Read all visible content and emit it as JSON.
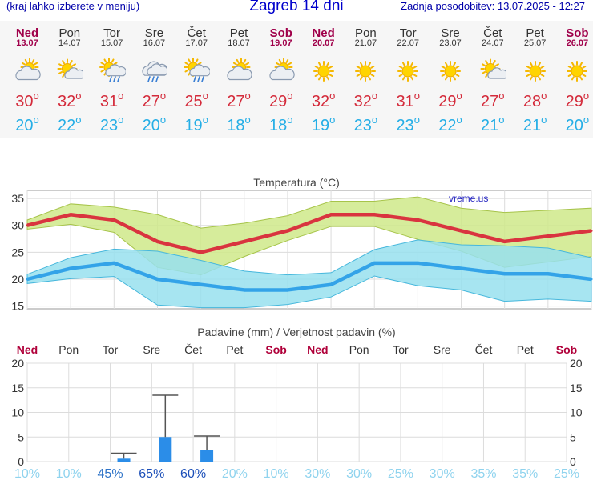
{
  "header": {
    "hint": "(kraj lahko izberete v meniju)",
    "title": "Zagreb 14 dni",
    "updated": "Zadnja posodobitev: 13.07.2025 - 12:27"
  },
  "days": [
    {
      "name": "Ned",
      "date": "13.07",
      "weekend": true,
      "icon": "partly-cloudy-icon",
      "max": "30",
      "min": "20"
    },
    {
      "name": "Pon",
      "date": "14.07",
      "weekend": false,
      "icon": "sun-cloud-icon",
      "max": "32",
      "min": "22"
    },
    {
      "name": "Tor",
      "date": "15.07",
      "weekend": false,
      "icon": "sun-cloud-rain-icon",
      "max": "31",
      "min": "23"
    },
    {
      "name": "Sre",
      "date": "16.07",
      "weekend": false,
      "icon": "cloud-rain-icon",
      "max": "27",
      "min": "20"
    },
    {
      "name": "Čet",
      "date": "17.07",
      "weekend": false,
      "icon": "sun-cloud-rain-icon",
      "max": "25",
      "min": "19"
    },
    {
      "name": "Pet",
      "date": "18.07",
      "weekend": false,
      "icon": "partly-cloudy-icon",
      "max": "27",
      "min": "18"
    },
    {
      "name": "Sob",
      "date": "19.07",
      "weekend": true,
      "icon": "partly-cloudy-icon",
      "max": "29",
      "min": "18"
    },
    {
      "name": "Ned",
      "date": "20.07",
      "weekend": true,
      "icon": "sun-icon",
      "max": "32",
      "min": "19"
    },
    {
      "name": "Pon",
      "date": "21.07",
      "weekend": false,
      "icon": "sun-icon",
      "max": "32",
      "min": "23"
    },
    {
      "name": "Tor",
      "date": "22.07",
      "weekend": false,
      "icon": "sun-icon",
      "max": "31",
      "min": "23"
    },
    {
      "name": "Sre",
      "date": "23.07",
      "weekend": false,
      "icon": "sun-icon",
      "max": "29",
      "min": "22"
    },
    {
      "name": "Čet",
      "date": "24.07",
      "weekend": false,
      "icon": "sun-cloud-icon",
      "max": "27",
      "min": "21"
    },
    {
      "name": "Pet",
      "date": "25.07",
      "weekend": false,
      "icon": "sun-icon",
      "max": "28",
      "min": "21"
    },
    {
      "name": "Sob",
      "date": "26.07",
      "weekend": true,
      "icon": "sun-icon",
      "max": "29",
      "min": "20"
    }
  ],
  "chart_data": [
    {
      "type": "line",
      "title": "Temperatura (°C)",
      "watermark": "vreme.us",
      "ylim": [
        14.5,
        36.5
      ],
      "yticks": [
        15,
        20,
        25,
        30,
        35
      ],
      "grid": true,
      "x": [
        0,
        1,
        2,
        3,
        4,
        5,
        6,
        7,
        8,
        9,
        10,
        11,
        12,
        13
      ],
      "series": [
        {
          "values": [
            30,
            32,
            31,
            27,
            25,
            27,
            29,
            32,
            32,
            31,
            29,
            27,
            28,
            29
          ],
          "color": "#d9343f"
        },
        {
          "values": [
            20,
            22,
            23,
            20,
            19,
            18,
            18,
            19,
            23,
            23,
            22,
            21,
            21,
            20
          ],
          "color": "#33a3e8"
        }
      ],
      "bands": [
        {
          "color": "#cfe98a",
          "edge": "#a7c44a",
          "upper": [
            31,
            34,
            33.4,
            32,
            29.5,
            30.4,
            31.8,
            34.5,
            34.5,
            35.3,
            33.2,
            32.4,
            32.8,
            33.2
          ],
          "lower": [
            29.3,
            30.2,
            28.7,
            22.2,
            20.8,
            24.2,
            27.2,
            29.8,
            29.8,
            27.4,
            25.2,
            22.2,
            23.2,
            24.2
          ]
        },
        {
          "color": "#98e0ee",
          "edge": "#46b7dc",
          "upper": [
            20.9,
            24,
            25.6,
            25.2,
            23.5,
            21.5,
            20.8,
            21.2,
            25.5,
            27.3,
            26.4,
            26.2,
            25.8,
            24
          ],
          "lower": [
            19.2,
            20.1,
            20.5,
            15.2,
            14.7,
            14.7,
            15.3,
            16.7,
            20.6,
            18.8,
            18.0,
            15.9,
            16.3,
            15.9
          ]
        }
      ]
    },
    {
      "type": "bar",
      "title": "Padavine (mm) / Verjetnost padavin (%)",
      "categories": [
        "Ned",
        "Pon",
        "Tor",
        "Sre",
        "Čet",
        "Pet",
        "Sob",
        "Ned",
        "Pon",
        "Tor",
        "Sre",
        "Čet",
        "Pet",
        "Sob"
      ],
      "weekend": [
        true,
        false,
        false,
        false,
        false,
        false,
        true,
        true,
        false,
        false,
        false,
        false,
        false,
        true
      ],
      "ylim": [
        0,
        20
      ],
      "yticks": [
        0,
        5,
        10,
        15,
        20
      ],
      "grid": true,
      "values": [
        0,
        0,
        0.6,
        5.0,
        2.3,
        0,
        0,
        0,
        0,
        0,
        0,
        0,
        0,
        0
      ],
      "max_error": [
        null,
        null,
        1.7,
        13.5,
        5.2,
        null,
        null,
        null,
        null,
        null,
        null,
        null,
        null,
        null
      ],
      "probability": [
        "10%",
        "10%",
        "45%",
        "65%",
        "60%",
        "20%",
        "10%",
        "30%",
        "30%",
        "25%",
        "30%",
        "35%",
        "35%",
        "25%"
      ],
      "bar_color": "#2b8de8"
    }
  ]
}
